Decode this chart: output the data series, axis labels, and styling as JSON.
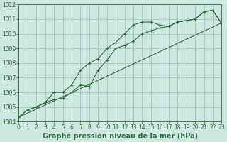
{
  "title": "Graphe pression niveau de la mer (hPa)",
  "x_hours": [
    0,
    1,
    2,
    3,
    4,
    5,
    6,
    7,
    8,
    9,
    10,
    11,
    12,
    13,
    14,
    15,
    16,
    17,
    18,
    19,
    20,
    21,
    22,
    23
  ],
  "line_upper": [
    1004.3,
    1004.8,
    1005.0,
    1005.3,
    1006.0,
    1006.0,
    1006.5,
    1007.5,
    1008.0,
    1008.3,
    1009.0,
    1009.4,
    1010.0,
    1010.6,
    1010.8,
    1010.8,
    1010.6,
    1010.5,
    1010.8,
    1010.9,
    1011.0,
    1011.5,
    1011.6,
    1010.7
  ],
  "line_lower": [
    1004.3,
    1004.8,
    1005.0,
    1005.3,
    1005.5,
    1005.6,
    1006.0,
    1006.5,
    1006.4,
    1007.5,
    1008.2,
    1009.0,
    1009.2,
    1009.5,
    1010.0,
    1010.2,
    1010.4,
    1010.5,
    1010.8,
    1010.9,
    1011.0,
    1011.5,
    1011.6,
    1010.7
  ],
  "line_straight": [
    1004.3,
    1004.58,
    1004.86,
    1005.14,
    1005.42,
    1005.7,
    1005.98,
    1006.26,
    1006.54,
    1006.82,
    1007.1,
    1007.38,
    1007.66,
    1007.94,
    1008.22,
    1008.5,
    1008.78,
    1009.06,
    1009.34,
    1009.62,
    1009.9,
    1010.18,
    1010.46,
    1010.74
  ],
  "bg_color": "#cce8e0",
  "grid_color": "#a0c8c0",
  "line_color": "#2d6e3e",
  "xlim": [
    0,
    23
  ],
  "ylim": [
    1004,
    1012
  ],
  "yticks": [
    1004,
    1005,
    1006,
    1007,
    1008,
    1009,
    1010,
    1011,
    1012
  ],
  "xticks": [
    0,
    1,
    2,
    3,
    4,
    5,
    6,
    7,
    8,
    9,
    10,
    11,
    12,
    13,
    14,
    15,
    16,
    17,
    18,
    19,
    20,
    21,
    22,
    23
  ],
  "title_fontsize": 7,
  "tick_fontsize": 5.5
}
